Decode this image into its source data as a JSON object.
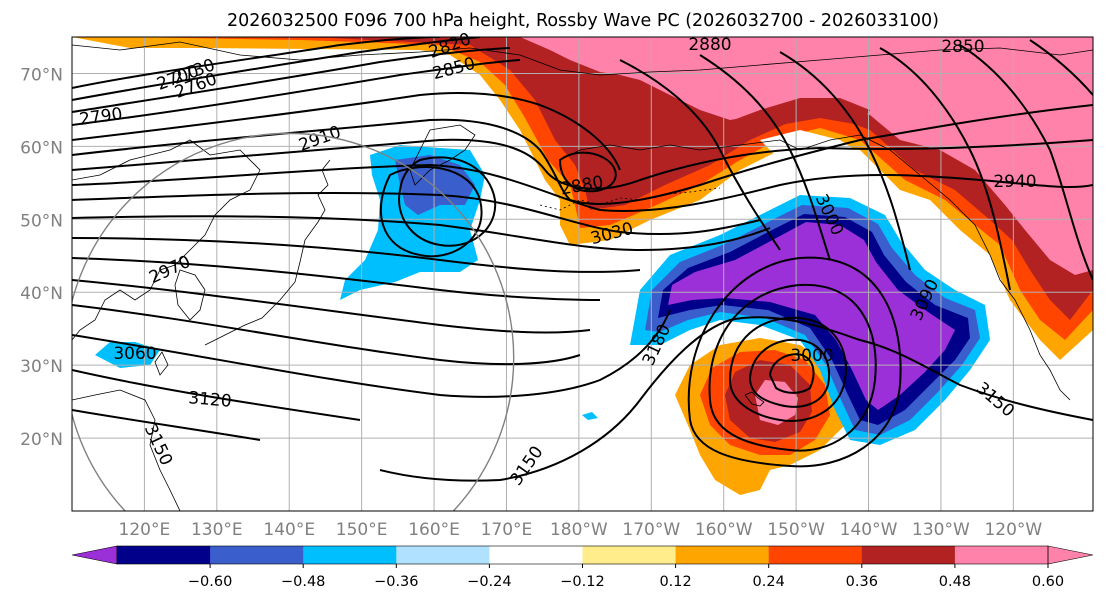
{
  "title": "2026032500 F096 700 hPa height, Rossby Wave PC (2026032700 - 2026033100)",
  "lat_labels": [
    "70°N",
    "60°N",
    "50°N",
    "40°N",
    "30°N",
    "20°N"
  ],
  "lon_labels": [
    "120°E",
    "130°E",
    "140°E",
    "150°E",
    "160°E",
    "170°E",
    "180°W",
    "170°W",
    "160°W",
    "150°W",
    "140°W",
    "130°W",
    "120°W"
  ],
  "map": {
    "projection": "cylindrical",
    "lon_range": [
      110,
      251
    ],
    "lat_range": [
      10,
      75
    ],
    "grid": true,
    "circle": {
      "center_lon": 140,
      "center_lat": 31,
      "radius_deg": 31
    }
  },
  "height_contours": [
    {
      "label": "2700",
      "value": 2700
    },
    {
      "label": "2730",
      "value": 2730
    },
    {
      "label": "2760",
      "value": 2760
    },
    {
      "label": "2790",
      "value": 2790
    },
    {
      "label": "2820",
      "value": 2820
    },
    {
      "label": "2850",
      "value": 2850
    },
    {
      "label": "2850",
      "value": 2850
    },
    {
      "label": "2880",
      "value": 2880
    },
    {
      "label": "2880",
      "value": 2880
    },
    {
      "label": "2910",
      "value": 2910
    },
    {
      "label": "2940",
      "value": 2940
    },
    {
      "label": "2970",
      "value": 2970
    },
    {
      "label": "3000",
      "value": 3000
    },
    {
      "label": "3000",
      "value": 3000
    },
    {
      "label": "3030",
      "value": 3030
    },
    {
      "label": "3060",
      "value": 3060
    },
    {
      "label": "3090",
      "value": 3090
    },
    {
      "label": "3120",
      "value": 3120
    },
    {
      "label": "3150",
      "value": 3150
    },
    {
      "label": "3150",
      "value": 3150
    },
    {
      "label": "3150",
      "value": 3150
    },
    {
      "label": "3180",
      "value": 3180
    }
  ],
  "colorbar": {
    "tick_labels": [
      "−0.60",
      "−0.48",
      "−0.36",
      "−0.24",
      "−0.12",
      "0.12",
      "0.24",
      "0.36",
      "0.48",
      "0.60"
    ],
    "colors": [
      "#9b30d9",
      "#00008b",
      "#3a5fcd",
      "#00bfff",
      "#b0e2ff",
      "#ffffff",
      "#ffec8b",
      "#ffa500",
      "#ff4500",
      "#b22222",
      "#ff82ab",
      "#ff82ab"
    ],
    "extend": "both"
  },
  "colors": {
    "contour": "#000000",
    "grid": "#b0b0b0",
    "axis_text": "#808080"
  }
}
